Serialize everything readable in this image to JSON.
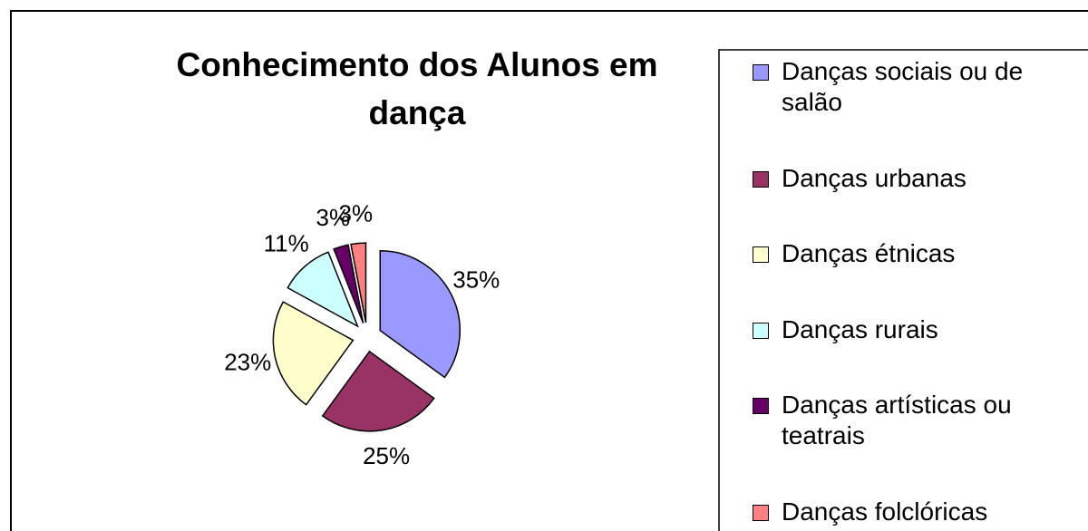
{
  "chart_data": {
    "type": "pie",
    "title": "Conhecimento dos Alunos em dança",
    "categories": [
      "Danças sociais ou de salão",
      "Danças urbanas",
      "Danças étnicas",
      "Danças rurais",
      "Danças artísticas ou teatrais",
      "Danças folclóricas"
    ],
    "values": [
      35,
      25,
      23,
      11,
      3,
      3
    ],
    "value_labels": [
      "35%",
      "25%",
      "23%",
      "11%",
      "3%",
      "3%"
    ],
    "colors": [
      "#9999ff",
      "#993366",
      "#ffffcc",
      "#ccffff",
      "#660066",
      "#ff8080"
    ]
  }
}
